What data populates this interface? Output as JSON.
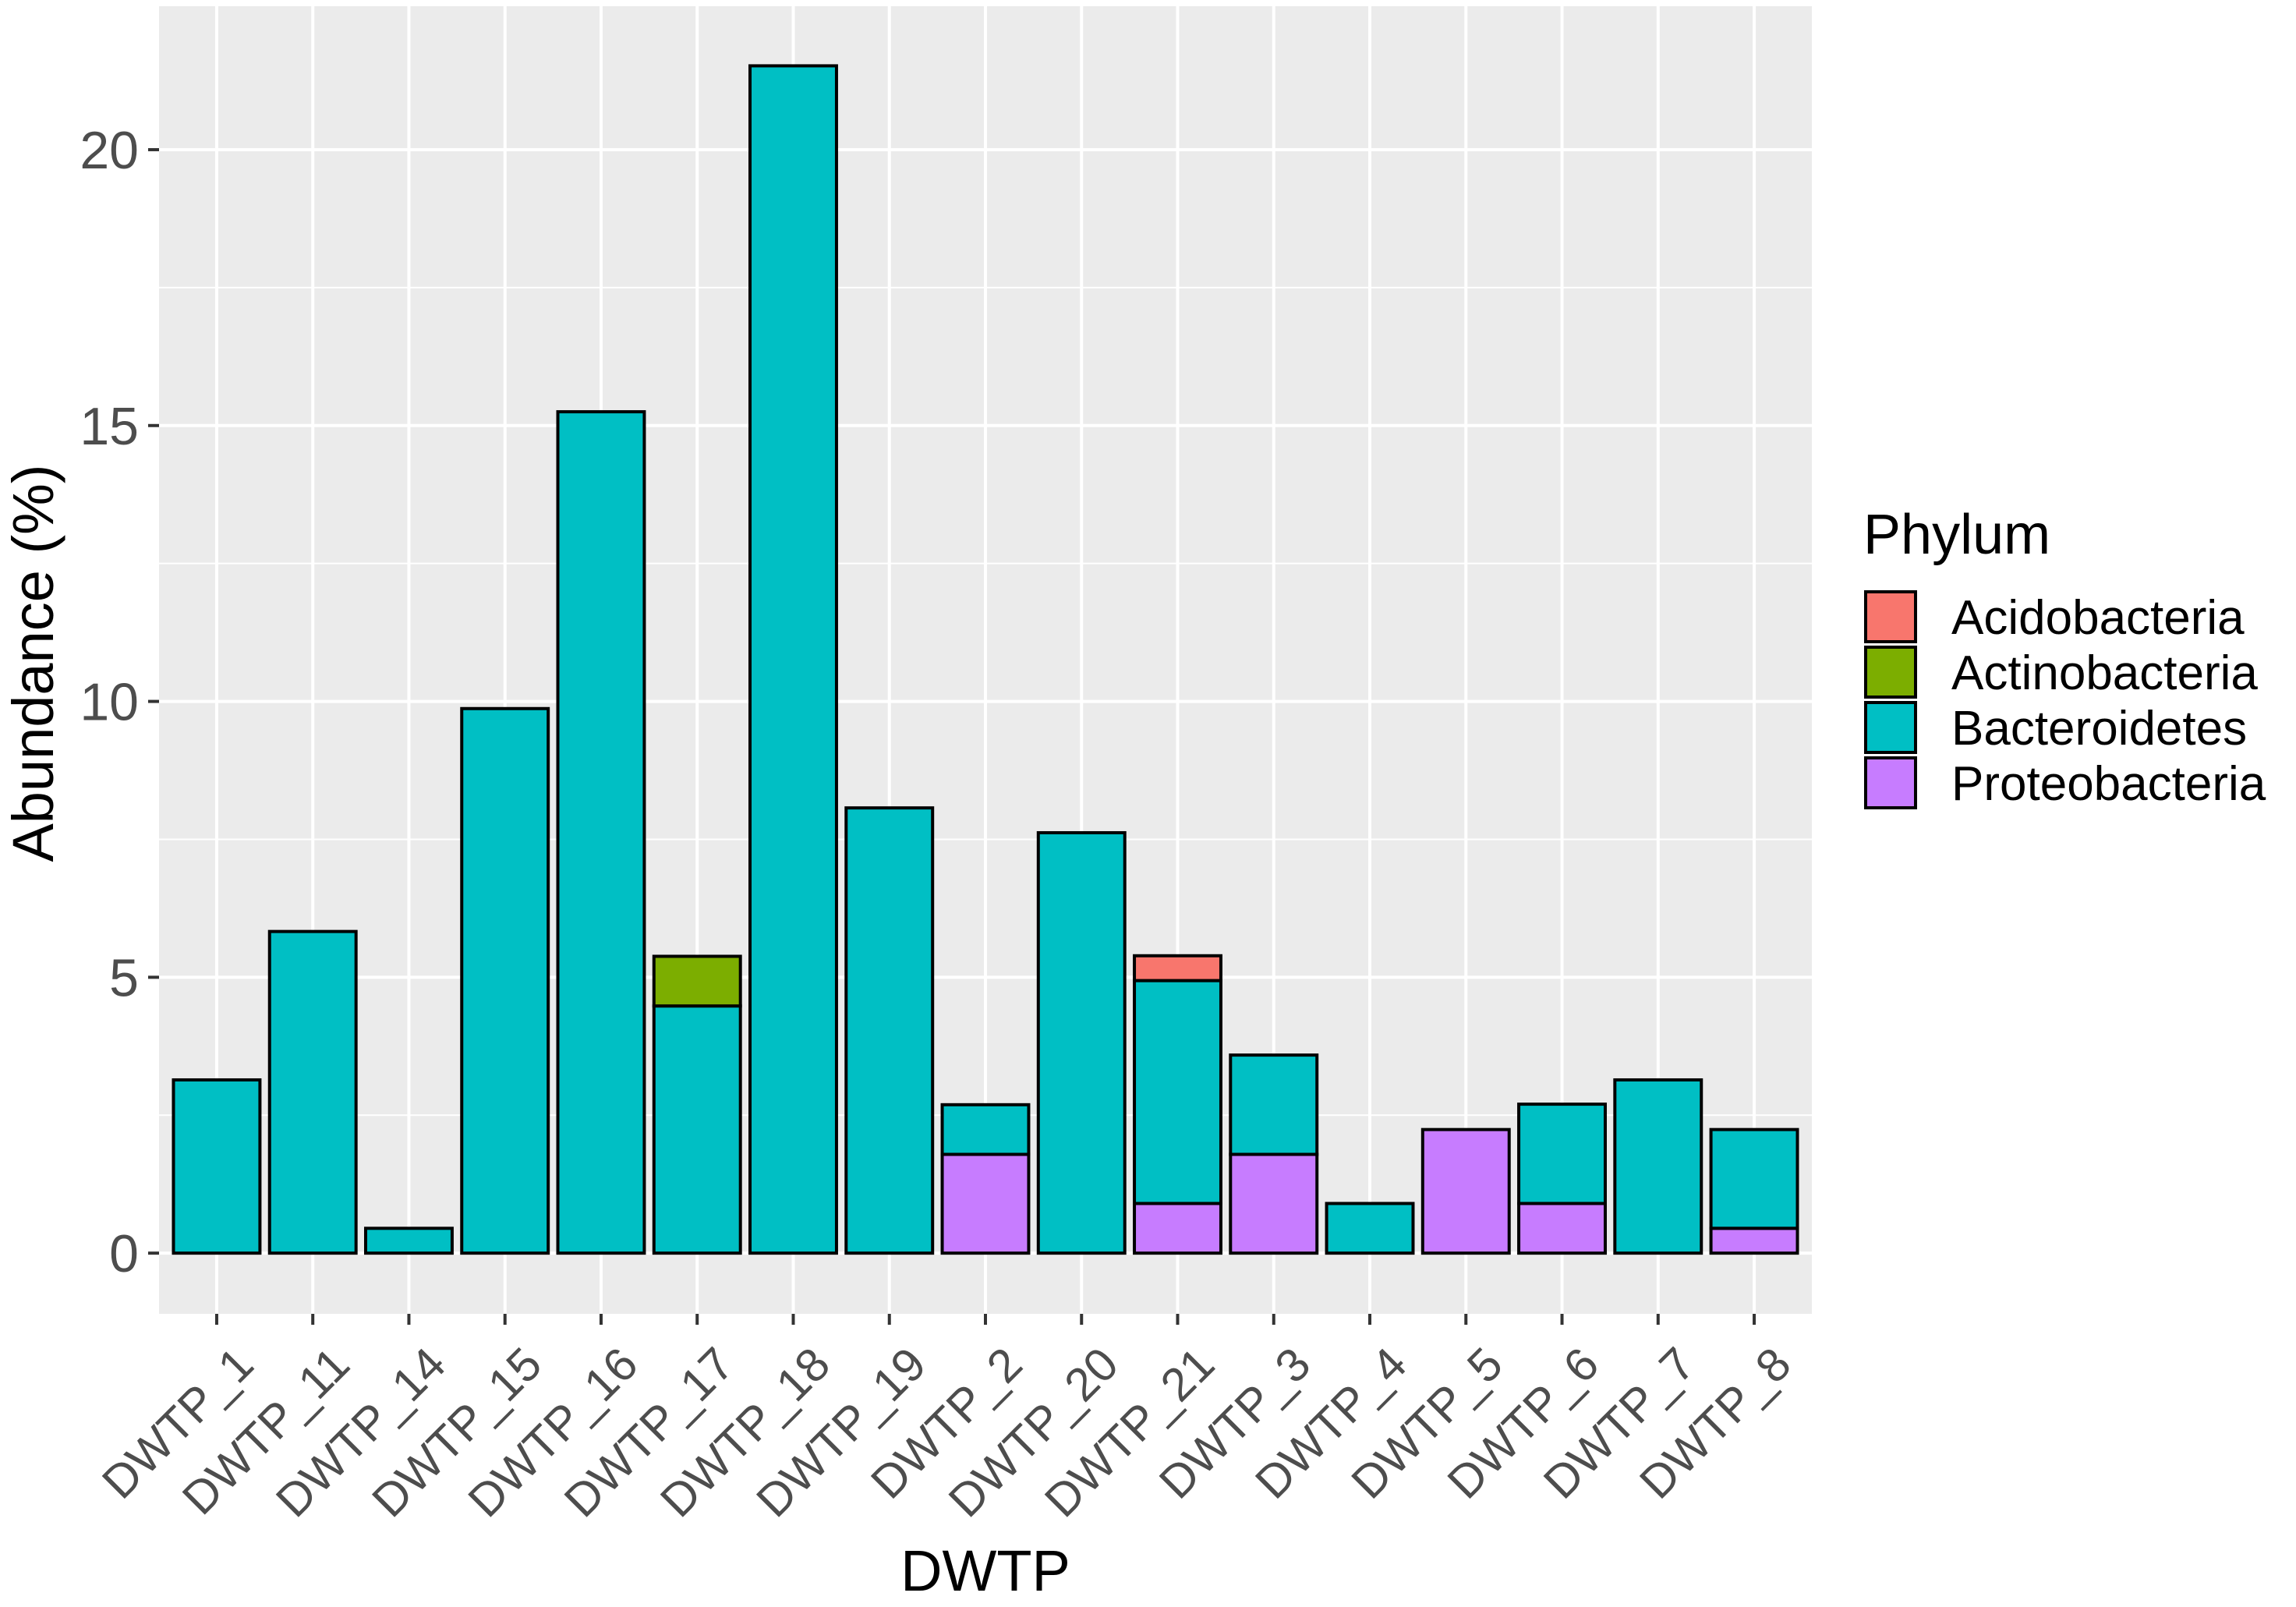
{
  "chart_data": {
    "type": "bar",
    "stacked": true,
    "title": "",
    "xlabel": "DWTP",
    "ylabel": "Abundance (%)",
    "ylim": [
      -1.1,
      22.6
    ],
    "yticks": [
      0,
      5,
      10,
      15,
      20
    ],
    "grid": true,
    "categories": [
      "DWTP_1",
      "DWTP_11",
      "DWTP_14",
      "DWTP_15",
      "DWTP_16",
      "DWTP_17",
      "DWTP_18",
      "DWTP_19",
      "DWTP_2",
      "DWTP_20",
      "DWTP_21",
      "DWTP_3",
      "DWTP_4",
      "DWTP_5",
      "DWTP_6",
      "DWTP_7",
      "DWTP_8"
    ],
    "series": [
      {
        "name": "Proteobacteria",
        "color": "#C77CFF",
        "values": [
          0,
          0,
          0,
          0,
          0,
          0,
          0,
          0,
          1.79,
          0,
          0.9,
          1.79,
          0,
          2.24,
          0.9,
          0,
          0.45
        ]
      },
      {
        "name": "Bacteroidetes",
        "color": "#00BFC4",
        "values": [
          3.14,
          5.83,
          0.45,
          9.87,
          15.25,
          4.48,
          21.52,
          8.07,
          0.9,
          7.62,
          4.04,
          1.8,
          0.9,
          0,
          1.8,
          3.14,
          1.79
        ]
      },
      {
        "name": "Actinobacteria",
        "color": "#7CAE00",
        "values": [
          0,
          0,
          0,
          0,
          0,
          0.9,
          0,
          0,
          0,
          0,
          0,
          0,
          0,
          0,
          0,
          0,
          0
        ]
      },
      {
        "name": "Acidobacteria",
        "color": "#F8766D",
        "values": [
          0,
          0,
          0,
          0,
          0,
          0,
          0,
          0,
          0,
          0,
          0.45,
          0,
          0,
          0,
          0,
          0,
          0
        ]
      }
    ],
    "legend": {
      "title": "Phylum",
      "position": "right",
      "entries": [
        {
          "label": "Acidobacteria",
          "color": "#F8766D"
        },
        {
          "label": "Actinobacteria",
          "color": "#7CAE00"
        },
        {
          "label": "Bacteroidetes",
          "color": "#00BFC4"
        },
        {
          "label": "Proteobacteria",
          "color": "#C77CFF"
        }
      ]
    },
    "panel_color": "#EBEBEB",
    "grid_color": "#FFFFFF",
    "bar_outline": "#000000"
  }
}
